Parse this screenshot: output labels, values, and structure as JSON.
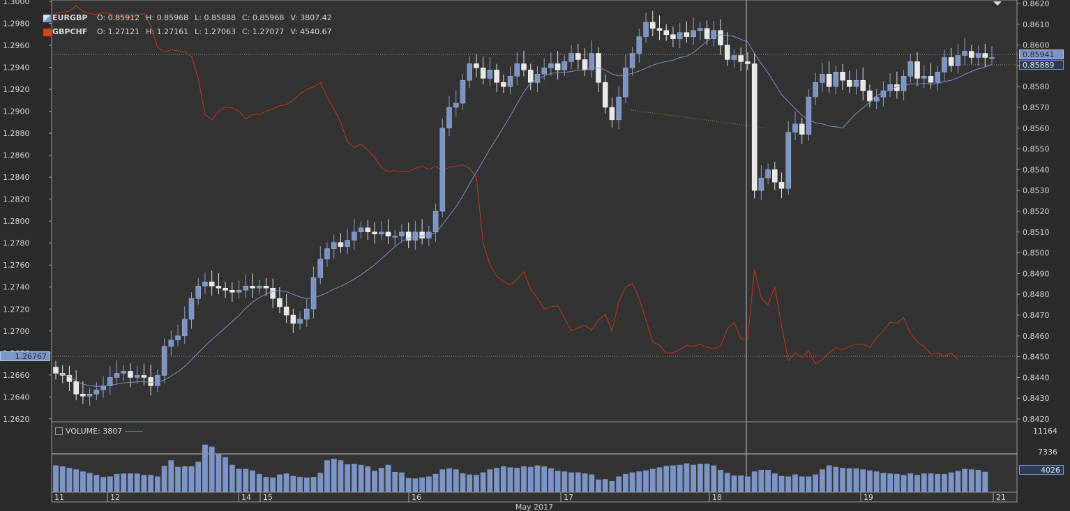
{
  "legend": {
    "eurgbp": {
      "symbol": "EURGBP",
      "color": "#7d95c6",
      "o": "O: 0.85912",
      "h": "H: 0.85968",
      "l": "L: 0.85888",
      "c": "C: 0.85968",
      "v": "V: 3807.42"
    },
    "gbpchf": {
      "symbol": "GBPCHF",
      "color": "#e03c20",
      "o": "O: 1.27121",
      "h": "H: 1.27161",
      "l": "L: 1.27063",
      "c": "C: 1.27077",
      "v": "V: 4540.67"
    }
  },
  "volume_legend": {
    "label": "VOLUME: 3807"
  },
  "price_tags": {
    "last": "0.85941",
    "ma": "0.85889",
    "left_axis": "1.26767",
    "volume": "4026"
  },
  "month_label": "May 2017",
  "chart_data": {
    "type": "line",
    "left_axis": {
      "ticks": [
        "1.3000",
        "1.2980",
        "1.2960",
        "1.2940",
        "1.2920",
        "1.2900",
        "1.2880",
        "1.2860",
        "1.2840",
        "1.2820",
        "1.2800",
        "1.2780",
        "1.2760",
        "1.2740",
        "1.2720",
        "1.2700",
        "1.2680",
        "1.2660",
        "1.2640",
        "1.2620"
      ],
      "range": [
        1.2618,
        1.3
      ]
    },
    "right_axis": {
      "ticks": [
        "0.8620",
        "0.8610",
        "0.8600",
        "0.8590",
        "0.8580",
        "0.8570",
        "0.8560",
        "0.8550",
        "0.8540",
        "0.8530",
        "0.8520",
        "0.8510",
        "0.8500",
        "0.8490",
        "0.8480",
        "0.8470",
        "0.8460",
        "0.8450",
        "0.8440",
        "0.8430",
        "0.8420"
      ],
      "range": [
        0.8419,
        0.8621
      ]
    },
    "volume_axis": {
      "ticks": [
        "11164",
        "7336"
      ]
    },
    "x_labels": [
      "11",
      "12",
      "14",
      "15",
      "16",
      "17",
      "18",
      "19",
      "21"
    ],
    "series": [
      {
        "name": "EURGBP",
        "kind": "candles",
        "close": [
          0.8442,
          0.8441,
          0.8438,
          0.8432,
          0.8431,
          0.8432,
          0.8434,
          0.8436,
          0.844,
          0.8442,
          0.8443,
          0.844,
          0.8441,
          0.844,
          0.8436,
          0.8441,
          0.8455,
          0.8458,
          0.846,
          0.8468,
          0.8478,
          0.8484,
          0.8486,
          0.8484,
          0.8483,
          0.8482,
          0.8481,
          0.8482,
          0.8484,
          0.8483,
          0.8484,
          0.8483,
          0.8478,
          0.8474,
          0.847,
          0.8466,
          0.8468,
          0.8473,
          0.8488,
          0.8497,
          0.8502,
          0.8505,
          0.8503,
          0.8506,
          0.851,
          0.8512,
          0.851,
          0.8509,
          0.851,
          0.8508,
          0.8508,
          0.851,
          0.8506,
          0.851,
          0.8507,
          0.851,
          0.852,
          0.856,
          0.857,
          0.8572,
          0.8583,
          0.8591,
          0.8589,
          0.8584,
          0.8588,
          0.8582,
          0.858,
          0.8585,
          0.8591,
          0.8588,
          0.8582,
          0.8586,
          0.8589,
          0.8591,
          0.8588,
          0.8592,
          0.8596,
          0.8593,
          0.8588,
          0.8596,
          0.8582,
          0.857,
          0.8564,
          0.8575,
          0.8589,
          0.8596,
          0.8604,
          0.8611,
          0.8608,
          0.8607,
          0.8605,
          0.8603,
          0.8606,
          0.8604,
          0.8607,
          0.8608,
          0.8603,
          0.8607,
          0.86,
          0.8593,
          0.8595,
          0.8592,
          0.8591,
          0.853,
          0.8536,
          0.854,
          0.8534,
          0.8531,
          0.8558,
          0.8562,
          0.8557,
          0.8575,
          0.8582,
          0.8586,
          0.858,
          0.8587,
          0.8583,
          0.858,
          0.8583,
          0.8578,
          0.8573,
          0.8575,
          0.8578,
          0.8581,
          0.8578,
          0.8585,
          0.8592,
          0.8584,
          0.8585,
          0.8582,
          0.8587,
          0.8594,
          0.859,
          0.8595,
          0.8597,
          0.8594,
          0.8596,
          0.8594,
          0.8594
        ]
      },
      {
        "name": "GBPCHF",
        "kind": "line",
        "y": [
          1.299,
          1.299,
          1.2991,
          1.2996,
          1.2991,
          1.2989,
          1.2988,
          1.299,
          1.2989,
          1.2986,
          1.2986,
          1.2986,
          1.2987,
          1.2989,
          1.2978,
          1.2958,
          1.2954,
          1.2956,
          1.2955,
          1.2954,
          1.295,
          1.293,
          1.2897,
          1.2892,
          1.29,
          1.2904,
          1.2903,
          1.29,
          1.2893,
          1.2897,
          1.2897,
          1.29,
          1.2902,
          1.2905,
          1.2906,
          1.291,
          1.2916,
          1.292,
          1.2922,
          1.2926,
          1.2913,
          1.2902,
          1.289,
          1.2872,
          1.2867,
          1.287,
          1.2865,
          1.2858,
          1.2849,
          1.2845,
          1.2846,
          1.2845,
          1.2845,
          1.2848,
          1.285,
          1.2847,
          1.285,
          1.2846,
          1.2849,
          1.285,
          1.2851,
          1.2848,
          1.284,
          1.278,
          1.276,
          1.275,
          1.2745,
          1.2742,
          1.2747,
          1.2754,
          1.2738,
          1.273,
          1.272,
          1.2722,
          1.2723,
          1.2712,
          1.27,
          1.2703,
          1.2705,
          1.2701,
          1.271,
          1.2715,
          1.27,
          1.2727,
          1.274,
          1.2743,
          1.273,
          1.271,
          1.269,
          1.2687,
          1.268,
          1.268,
          1.2683,
          1.2687,
          1.2686,
          1.2688,
          1.2685,
          1.2684,
          1.2686,
          1.2702,
          1.2708,
          1.2693,
          1.2692,
          1.2756,
          1.273,
          1.2724,
          1.274,
          1.2705,
          1.2673,
          1.268,
          1.2676,
          1.2682,
          1.267,
          1.2674,
          1.268,
          1.2685,
          1.2683,
          1.2686,
          1.2688,
          1.2688,
          1.2685,
          1.2694,
          1.27,
          1.2708,
          1.2707,
          1.2712,
          1.2698,
          1.269,
          1.2686,
          1.2679,
          1.268,
          1.2677,
          1.268,
          1.2674
        ]
      },
      {
        "name": "VOLUME",
        "kind": "bars",
        "values": [
          5300,
          5100,
          4800,
          4500,
          4100,
          3800,
          3400,
          3000,
          3100,
          3600,
          3700,
          3700,
          3700,
          3400,
          3400,
          3100,
          5200,
          6300,
          5000,
          5100,
          5100,
          6000,
          9400,
          9000,
          7600,
          6900,
          5400,
          4600,
          4600,
          4300,
          3600,
          3000,
          2900,
          3500,
          3700,
          3200,
          3000,
          2900,
          3000,
          3800,
          6300,
          6600,
          6300,
          5500,
          5600,
          5400,
          5100,
          4200,
          4800,
          5400,
          4000,
          3900,
          2800,
          2700,
          2900,
          3100,
          3600,
          4500,
          4700,
          4500,
          3700,
          3500,
          3400,
          3900,
          4500,
          4800,
          5100,
          4900,
          4800,
          5100,
          5000,
          5300,
          5100,
          4700,
          4200,
          4100,
          3900,
          3900,
          3700,
          3500,
          2500,
          2600,
          2200,
          3100,
          3600,
          3900,
          4100,
          4300,
          4600,
          4900,
          5200,
          5300,
          5400,
          5700,
          5400,
          5600,
          5600,
          5300,
          4400,
          3800,
          3300,
          3300,
          3100,
          4100,
          4400,
          4400,
          3700,
          3200,
          3100,
          3500,
          3100,
          3100,
          3500,
          4500,
          5300,
          5000,
          4800,
          4700,
          4700,
          4500,
          4300,
          4100,
          3800,
          3700,
          3600,
          3400,
          3700,
          3400,
          3700,
          3700,
          3600,
          3600,
          3900,
          4200,
          4600,
          4500,
          4400,
          4026
        ]
      }
    ],
    "moving_average": {
      "name": "EURGBP MA",
      "color": "#7d95c6"
    }
  }
}
